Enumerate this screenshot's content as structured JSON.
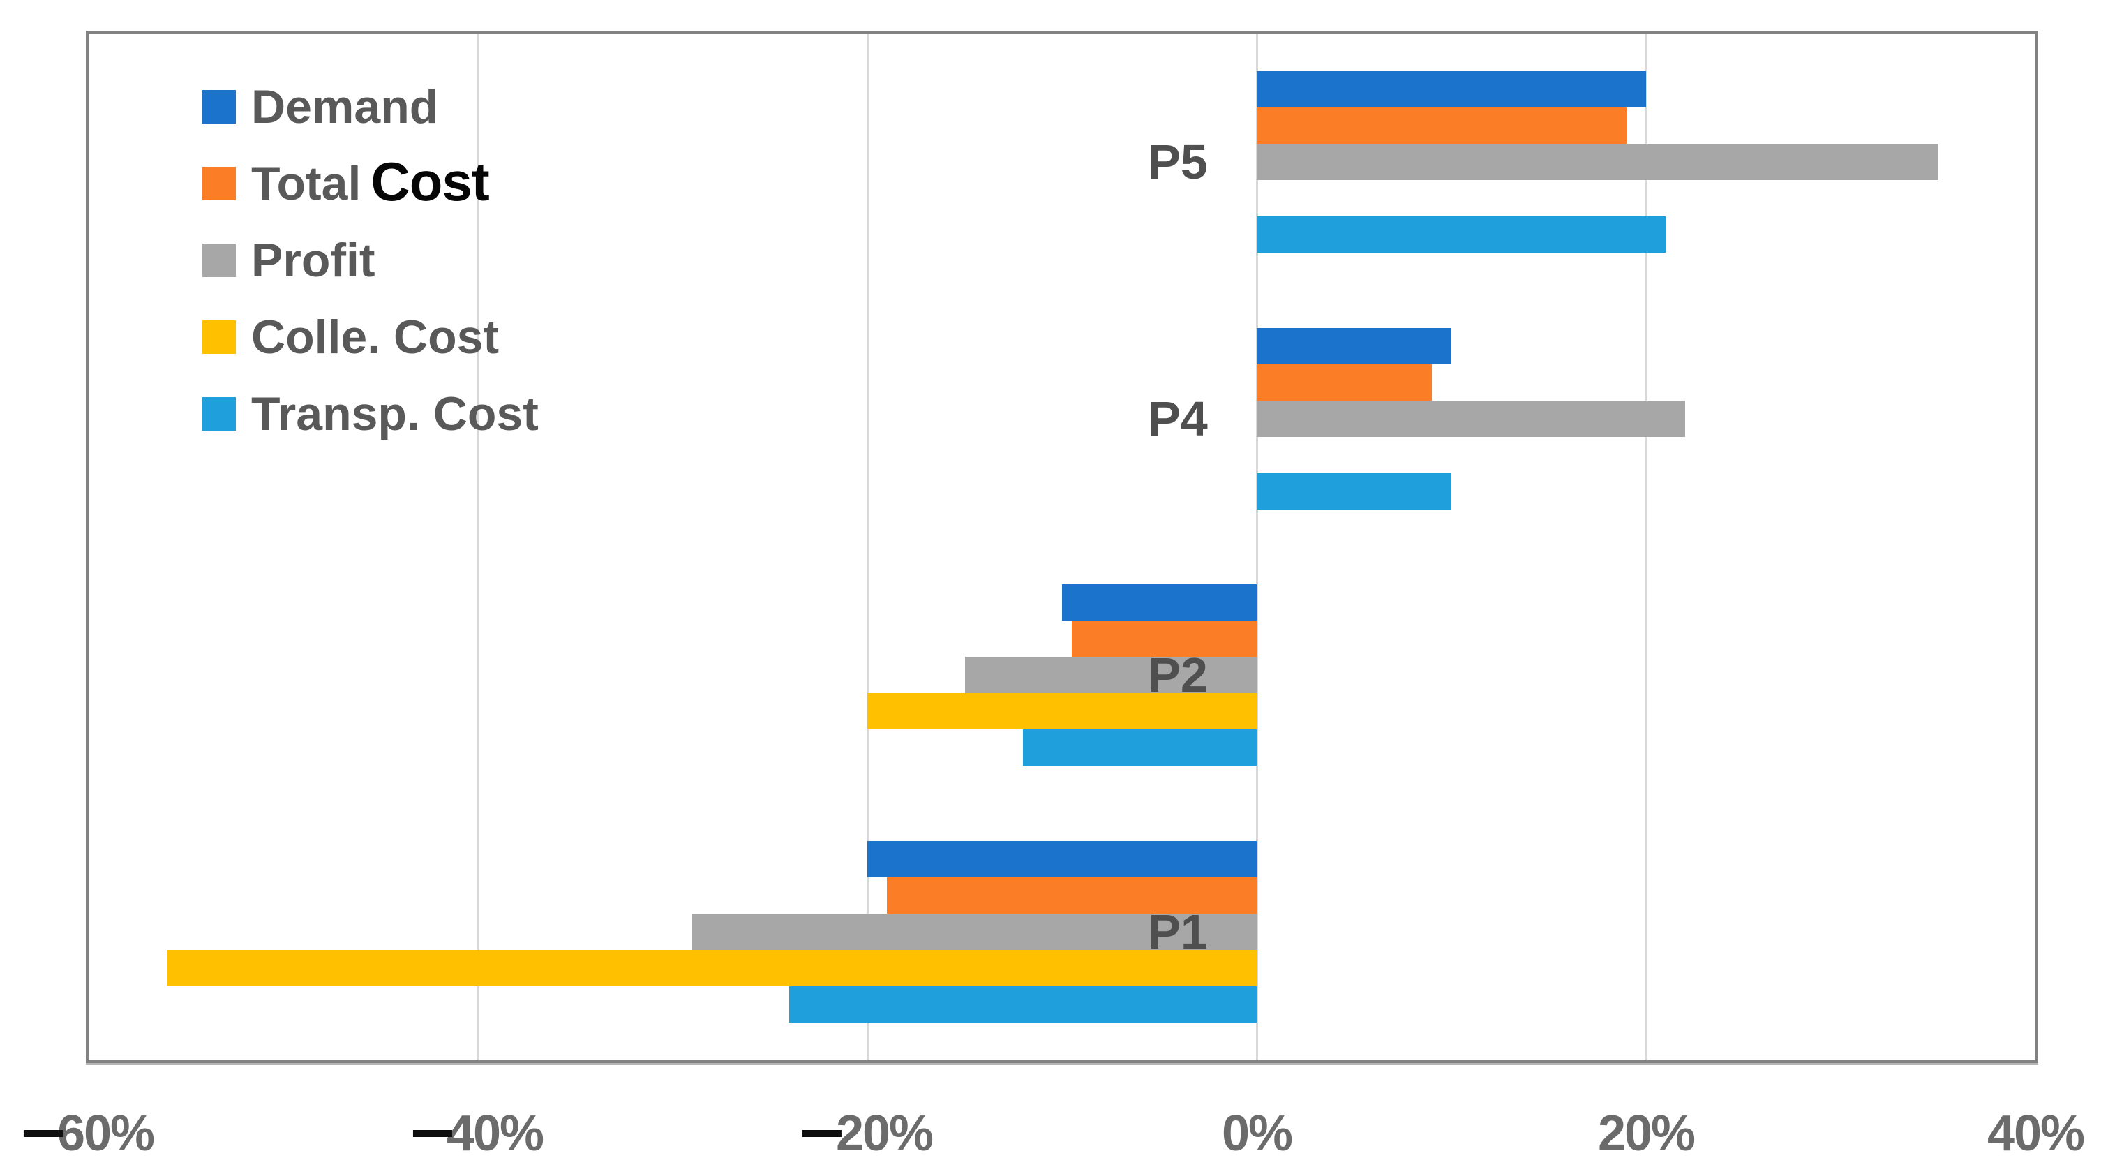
{
  "chart_data": {
    "type": "bar",
    "orientation": "horizontal",
    "title": "",
    "categories": [
      "P5",
      "P4",
      "P2",
      "P1"
    ],
    "series": [
      {
        "name": "Demand",
        "color": "#1c73cb",
        "values": [
          20,
          10,
          -10,
          -20
        ]
      },
      {
        "name": "Total Cost",
        "color": "#fb7d26",
        "values": [
          19,
          9,
          -9.5,
          -19
        ]
      },
      {
        "name": "Profit",
        "color": "#a7a7a7",
        "values": [
          35,
          22,
          -15,
          -29
        ]
      },
      {
        "name": "Colle. Cost",
        "color": "#ffc000",
        "values": [
          0,
          0,
          -20,
          -56
        ]
      },
      {
        "name": "Transp. Cost",
        "color": "#1f9fdc",
        "values": [
          21,
          10,
          -12,
          -24
        ]
      }
    ],
    "x_axis": {
      "xlim": [
        -60,
        40
      ],
      "ticks": [
        -60,
        -40,
        -20,
        0,
        20,
        40
      ],
      "tick_labels": [
        "-60%",
        "-40%",
        "-20%",
        "0%",
        "20%",
        "40%"
      ],
      "format": "percent"
    },
    "grid": true,
    "legend": {
      "position": "top-left-inside",
      "items": [
        {
          "text": "Demand",
          "overlay_text": "",
          "swatch": "#1c73cb"
        },
        {
          "text": "Total",
          "overlay_text": "Cost",
          "swatch": "#fb7d26"
        },
        {
          "text": "Profit",
          "overlay_text": "",
          "swatch": "#a7a7a7"
        },
        {
          "text": "Colle. Cost",
          "overlay_text": "",
          "swatch": "#ffc000"
        },
        {
          "text": "Transp. Cost",
          "overlay_text": "",
          "swatch": "#1f9fdc"
        }
      ]
    },
    "colors": {
      "plot_border": "#828282",
      "gridline": "#d8d8d8",
      "legend_text": "#595959",
      "category_text": "#4f4f4f",
      "tick_text": "#6b6b6b",
      "minus_overlay": "#0f0f0f",
      "background": "#ffffff"
    }
  }
}
